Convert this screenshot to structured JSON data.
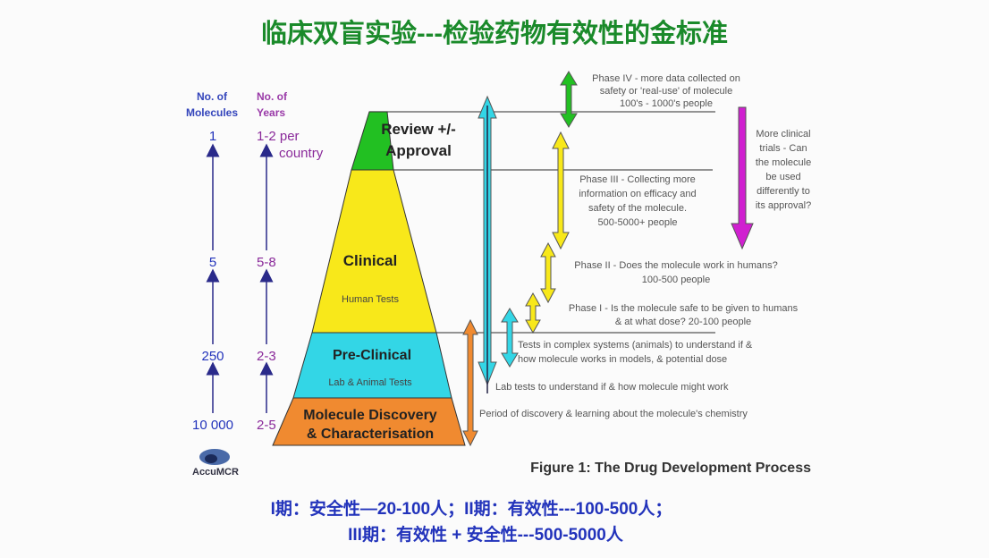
{
  "title": "临床双盲实验---检验药物有效性的金标准",
  "columns": {
    "molecules_header": [
      "No. of",
      "Molecules"
    ],
    "years_header": [
      "No. of",
      "Years"
    ],
    "molecules": [
      "1",
      "5",
      "250",
      "10 000"
    ],
    "years": [
      "1-2 per",
      "country",
      "5-8",
      "2-3",
      "2-5"
    ]
  },
  "pyramid": {
    "review": [
      "Review +/-",
      "Approval"
    ],
    "clinical": "Clinical",
    "clinical_sub": "Human Tests",
    "preclinical": "Pre-Clinical",
    "preclinical_sub": "Lab & Animal Tests",
    "discovery": [
      "Molecule Discovery",
      "& Characterisation"
    ]
  },
  "notes": {
    "phase4": [
      "Phase IV - more data collected on",
      "safety or 'real-use' of molecule",
      "100's - 1000's people"
    ],
    "phase3": [
      "Phase III - Collecting more",
      "information on efficacy and",
      "safety of the molecule.",
      "500-5000+ people"
    ],
    "more_trials": [
      "More clinical",
      "trials - Can",
      "the molecule",
      "be used",
      "differently to",
      "its approval?"
    ],
    "phase2": [
      "Phase II - Does the molecule work in humans?",
      "100-500 people"
    ],
    "phase1": [
      "Phase I - Is the molecule safe to be given to humans",
      "& at what dose?   20-100 people"
    ],
    "animal": [
      "Tests in complex systems (animals) to understand if &",
      "how molecule works in models, & potential dose"
    ],
    "lab": "Lab tests to understand if & how molecule might work",
    "discovery": "Period of discovery & learning about the molecule's chemistry"
  },
  "logo": "AccuMCR",
  "caption": "Figure 1: The Drug Development Process",
  "summary": [
    "I期：安全性—20-100人；II期：有效性---100-500人；",
    "III期：有效性 + 安全性---500-5000人"
  ],
  "colors": {
    "title": "#1a8a2a",
    "green": "#22c022",
    "yellow": "#f8e81a",
    "cyan": "#33d6e6",
    "orange": "#f08a30",
    "magenta": "#d020d0",
    "blue": "#2233bb",
    "purple": "#8a2a9a"
  }
}
